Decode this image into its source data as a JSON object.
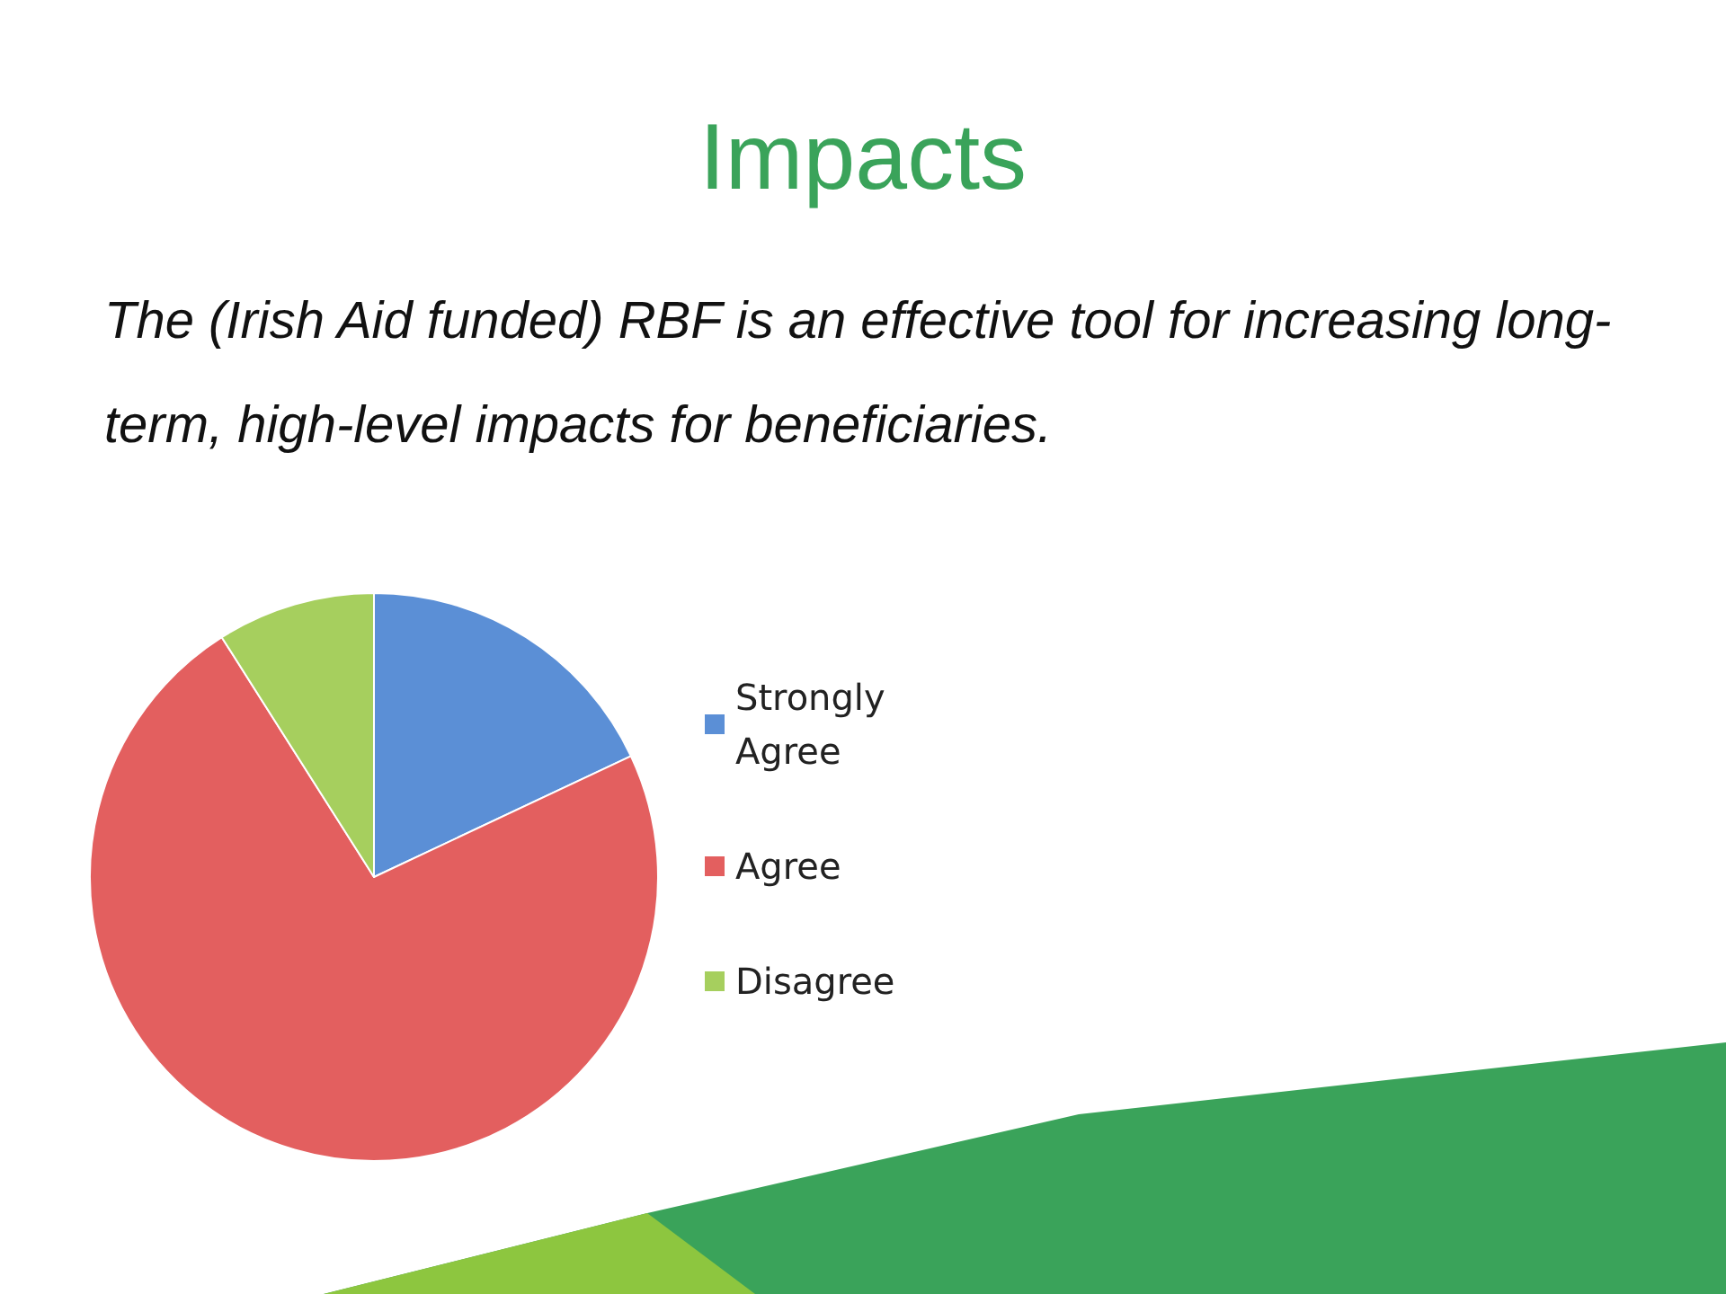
{
  "chart_data": {
    "type": "pie",
    "title": "Impacts",
    "subtitle": "The (Irish Aid funded) RBF is an effective tool for increasing long-term, high-level impacts for beneficiaries.",
    "categories": [
      "Strongly Agree",
      "Agree",
      "Disagree"
    ],
    "values": [
      18,
      73,
      9
    ],
    "colors": [
      "#5b8fd6",
      "#e35f5f",
      "#a6cf5e"
    ],
    "legend": "right"
  }
}
